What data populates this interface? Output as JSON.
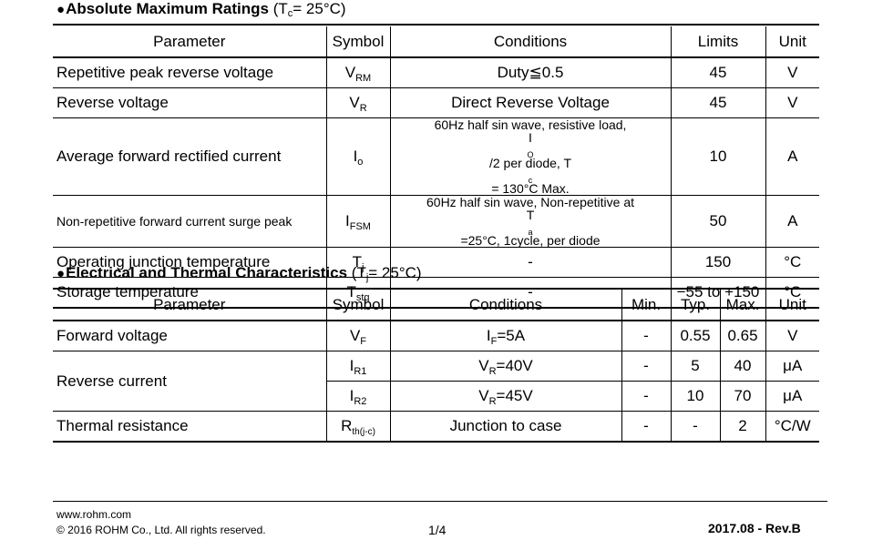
{
  "section1": {
    "bullet": "●",
    "title": "Absolute Maximum Ratings",
    "condition_prefix": "(T",
    "condition_sub": "c",
    "condition_suffix": "= 25°C)",
    "headers": [
      "Parameter",
      "Symbol",
      "Conditions",
      "Limits",
      "Unit"
    ],
    "rows": [
      {
        "parameter": "Repetitive peak reverse voltage",
        "sym": "V",
        "sym_sub": "RM",
        "conditions": "Duty≦0.5",
        "limits": "45",
        "unit": "V"
      },
      {
        "parameter": "Reverse voltage",
        "sym": "V",
        "sym_sub": "R",
        "conditions": "Direct Reverse Voltage",
        "limits": "45",
        "unit": "V"
      },
      {
        "parameter": "Average forward rectified current",
        "sym": "I",
        "sym_sub": "o",
        "cond_line1": "60Hz half sin wave, resistive load,",
        "cond_line2_a": "I",
        "cond_line2_a_sub": "O",
        "cond_line2_b": "/2 per diode, T",
        "cond_line2_b_sub": "c",
        "cond_line2_c": "= 130°C Max.",
        "limits": "10",
        "unit": "A"
      },
      {
        "parameter": "Non-repetitive forward current surge peak",
        "sym": "I",
        "sym_sub": "FSM",
        "cond_line1": "60Hz half sin wave, Non-repetitive at",
        "cond_line2_a": "T",
        "cond_line2_a_sub": "a",
        "cond_line2_b": "=25°C, 1cycle, per diode",
        "limits": "50",
        "unit": "A"
      },
      {
        "parameter": "Operating junction temperature",
        "sym": "T",
        "sym_sub": "j",
        "conditions": "-",
        "limits": "150",
        "unit": "°C"
      },
      {
        "parameter": "Storage temperature",
        "sym": "T",
        "sym_sub": "stg",
        "conditions": "-",
        "limits": "−55 to +150",
        "unit": "°C"
      }
    ]
  },
  "section2": {
    "bullet": "●",
    "title": "Electrical and Thermal Characteristics",
    "condition_prefix": "(T",
    "condition_sub": "j",
    "condition_suffix": "= 25°C)",
    "headers": [
      "Parameter",
      "Symbol",
      "Conditions",
      "Min.",
      "Typ.",
      "Max.",
      "Unit"
    ],
    "rows": [
      {
        "parameter": "Forward voltage",
        "sym": "V",
        "sym_sub": "F",
        "cond_a": "I",
        "cond_sub": "F",
        "cond_b": "=5A",
        "min": "-",
        "typ": "0.55",
        "max": "0.65",
        "unit": "V"
      },
      {
        "parameter": "Reverse current",
        "sym": "I",
        "sym_sub": "R1",
        "cond_a": "V",
        "cond_sub": "R",
        "cond_b": "=40V",
        "min": "-",
        "typ": "5",
        "max": "40",
        "unit": "μA"
      },
      {
        "sym": "I",
        "sym_sub": "R2",
        "cond_a": "V",
        "cond_sub": "R",
        "cond_b": "=45V",
        "min": "-",
        "typ": "10",
        "max": "70",
        "unit": "μA"
      },
      {
        "parameter": "Thermal resistance",
        "sym": "R",
        "sym_sub": "th(j-c)",
        "conditions": "Junction to case",
        "min": "-",
        "typ": "-",
        "max": "2",
        "unit": "°C/W"
      }
    ]
  },
  "footer": {
    "url": "www.rohm.com",
    "copyright": "© 2016  ROHM Co., Ltd. All rights reserved.",
    "page": "1/4",
    "revision": "2017.08 -  Rev.B"
  }
}
